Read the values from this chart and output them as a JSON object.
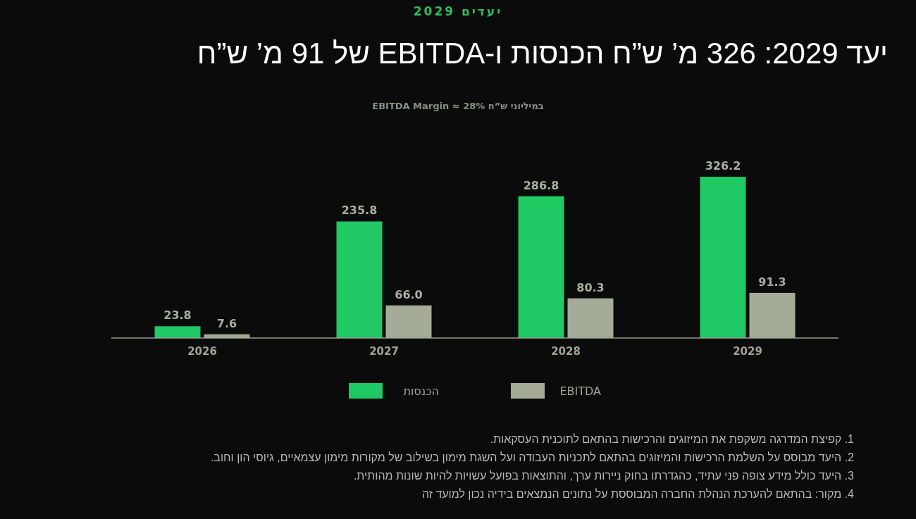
{
  "chart_data": {
    "type": "bar",
    "title": "יעד 2029: 326 מ’ ש”ח הכנסות ו-EBITDA של 91 מ’ ש”ח",
    "subtitle": "במיליוני ש”ח  EBITDA Margin ≈ 28%",
    "categories": [
      "2026",
      "2027",
      "2028",
      "2029"
    ],
    "series": [
      {
        "name": "הכנסות",
        "color": "#1fc964",
        "values": [
          23.8,
          235.8,
          286.8,
          326.2
        ],
        "value_labels": [
          "23.8",
          "235.8",
          "286.8",
          "326.2"
        ]
      },
      {
        "name": "EBITDA",
        "color": "#a4ab96",
        "values": [
          7.6,
          66.0,
          80.3,
          91.3
        ],
        "value_labels": [
          "7.6",
          "66.0",
          "80.3",
          "91.3"
        ]
      }
    ],
    "legend": "bottom",
    "annotations": [
      "יעדים 2029",
      "1. קפיצת המדרגה משקפת את המיזוגים והרכישות בהתאם לתוכנית העסקאות.",
      "2. היעד מבוסס על השלמת הרכישות והמיזוגים בהתאם לתכניות העבודה ועל השגת מימון בשילוב של מקורות מימון עצמאיים, גיוסי הון וחוב.",
      "3. היעד כולל מידע צופה פני עתיד, כהגדרתו בחוק ניירות ערך, והתוצאות בפועל עשויות להיות שונות מהותית.",
      "4. מקור: בהתאם להערכת הנהלת החברה המבוססת על נתונים הנמצאים בידיה נכון למועד זה"
    ]
  }
}
